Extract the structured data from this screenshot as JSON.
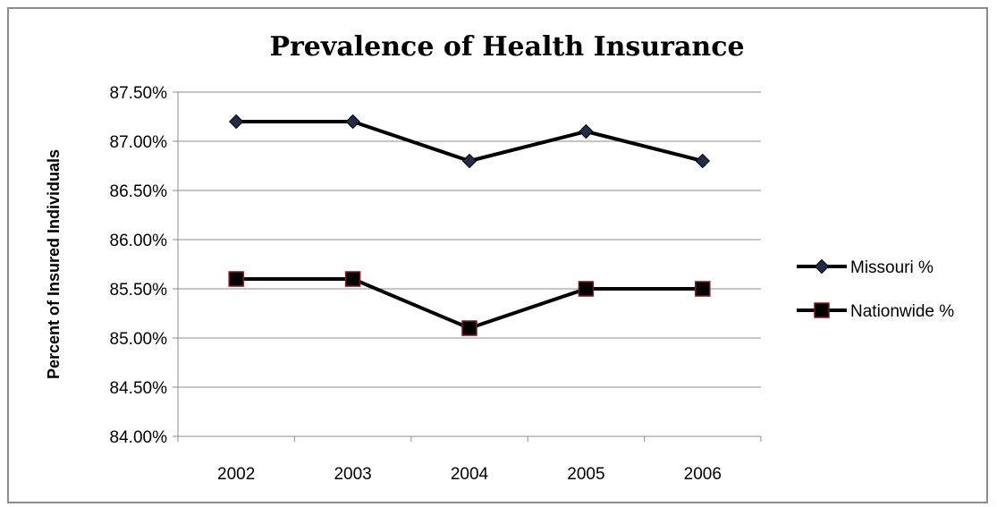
{
  "chart_data": {
    "type": "line",
    "title": "Prevalence of Health Insurance",
    "xlabel": "",
    "ylabel": "Percent of Insured Individuals",
    "categories": [
      "2002",
      "2003",
      "2004",
      "2005",
      "2006"
    ],
    "ylim": [
      84.0,
      87.5
    ],
    "y_ticks": [
      "84.00%",
      "84.50%",
      "85.00%",
      "85.50%",
      "86.00%",
      "86.50%",
      "87.00%",
      "87.50%"
    ],
    "grid": true,
    "legend_position": "right",
    "series": [
      {
        "name": "Missouri %",
        "values": [
          87.2,
          87.2,
          86.8,
          87.1,
          86.8
        ],
        "color": "#000000",
        "marker": "diamond",
        "marker_color": "#1f2d4a"
      },
      {
        "name": "Nationwide %",
        "values": [
          85.6,
          85.6,
          85.1,
          85.5,
          85.5
        ],
        "color": "#000000",
        "marker": "square",
        "marker_color": "#7f1a1a"
      }
    ]
  }
}
